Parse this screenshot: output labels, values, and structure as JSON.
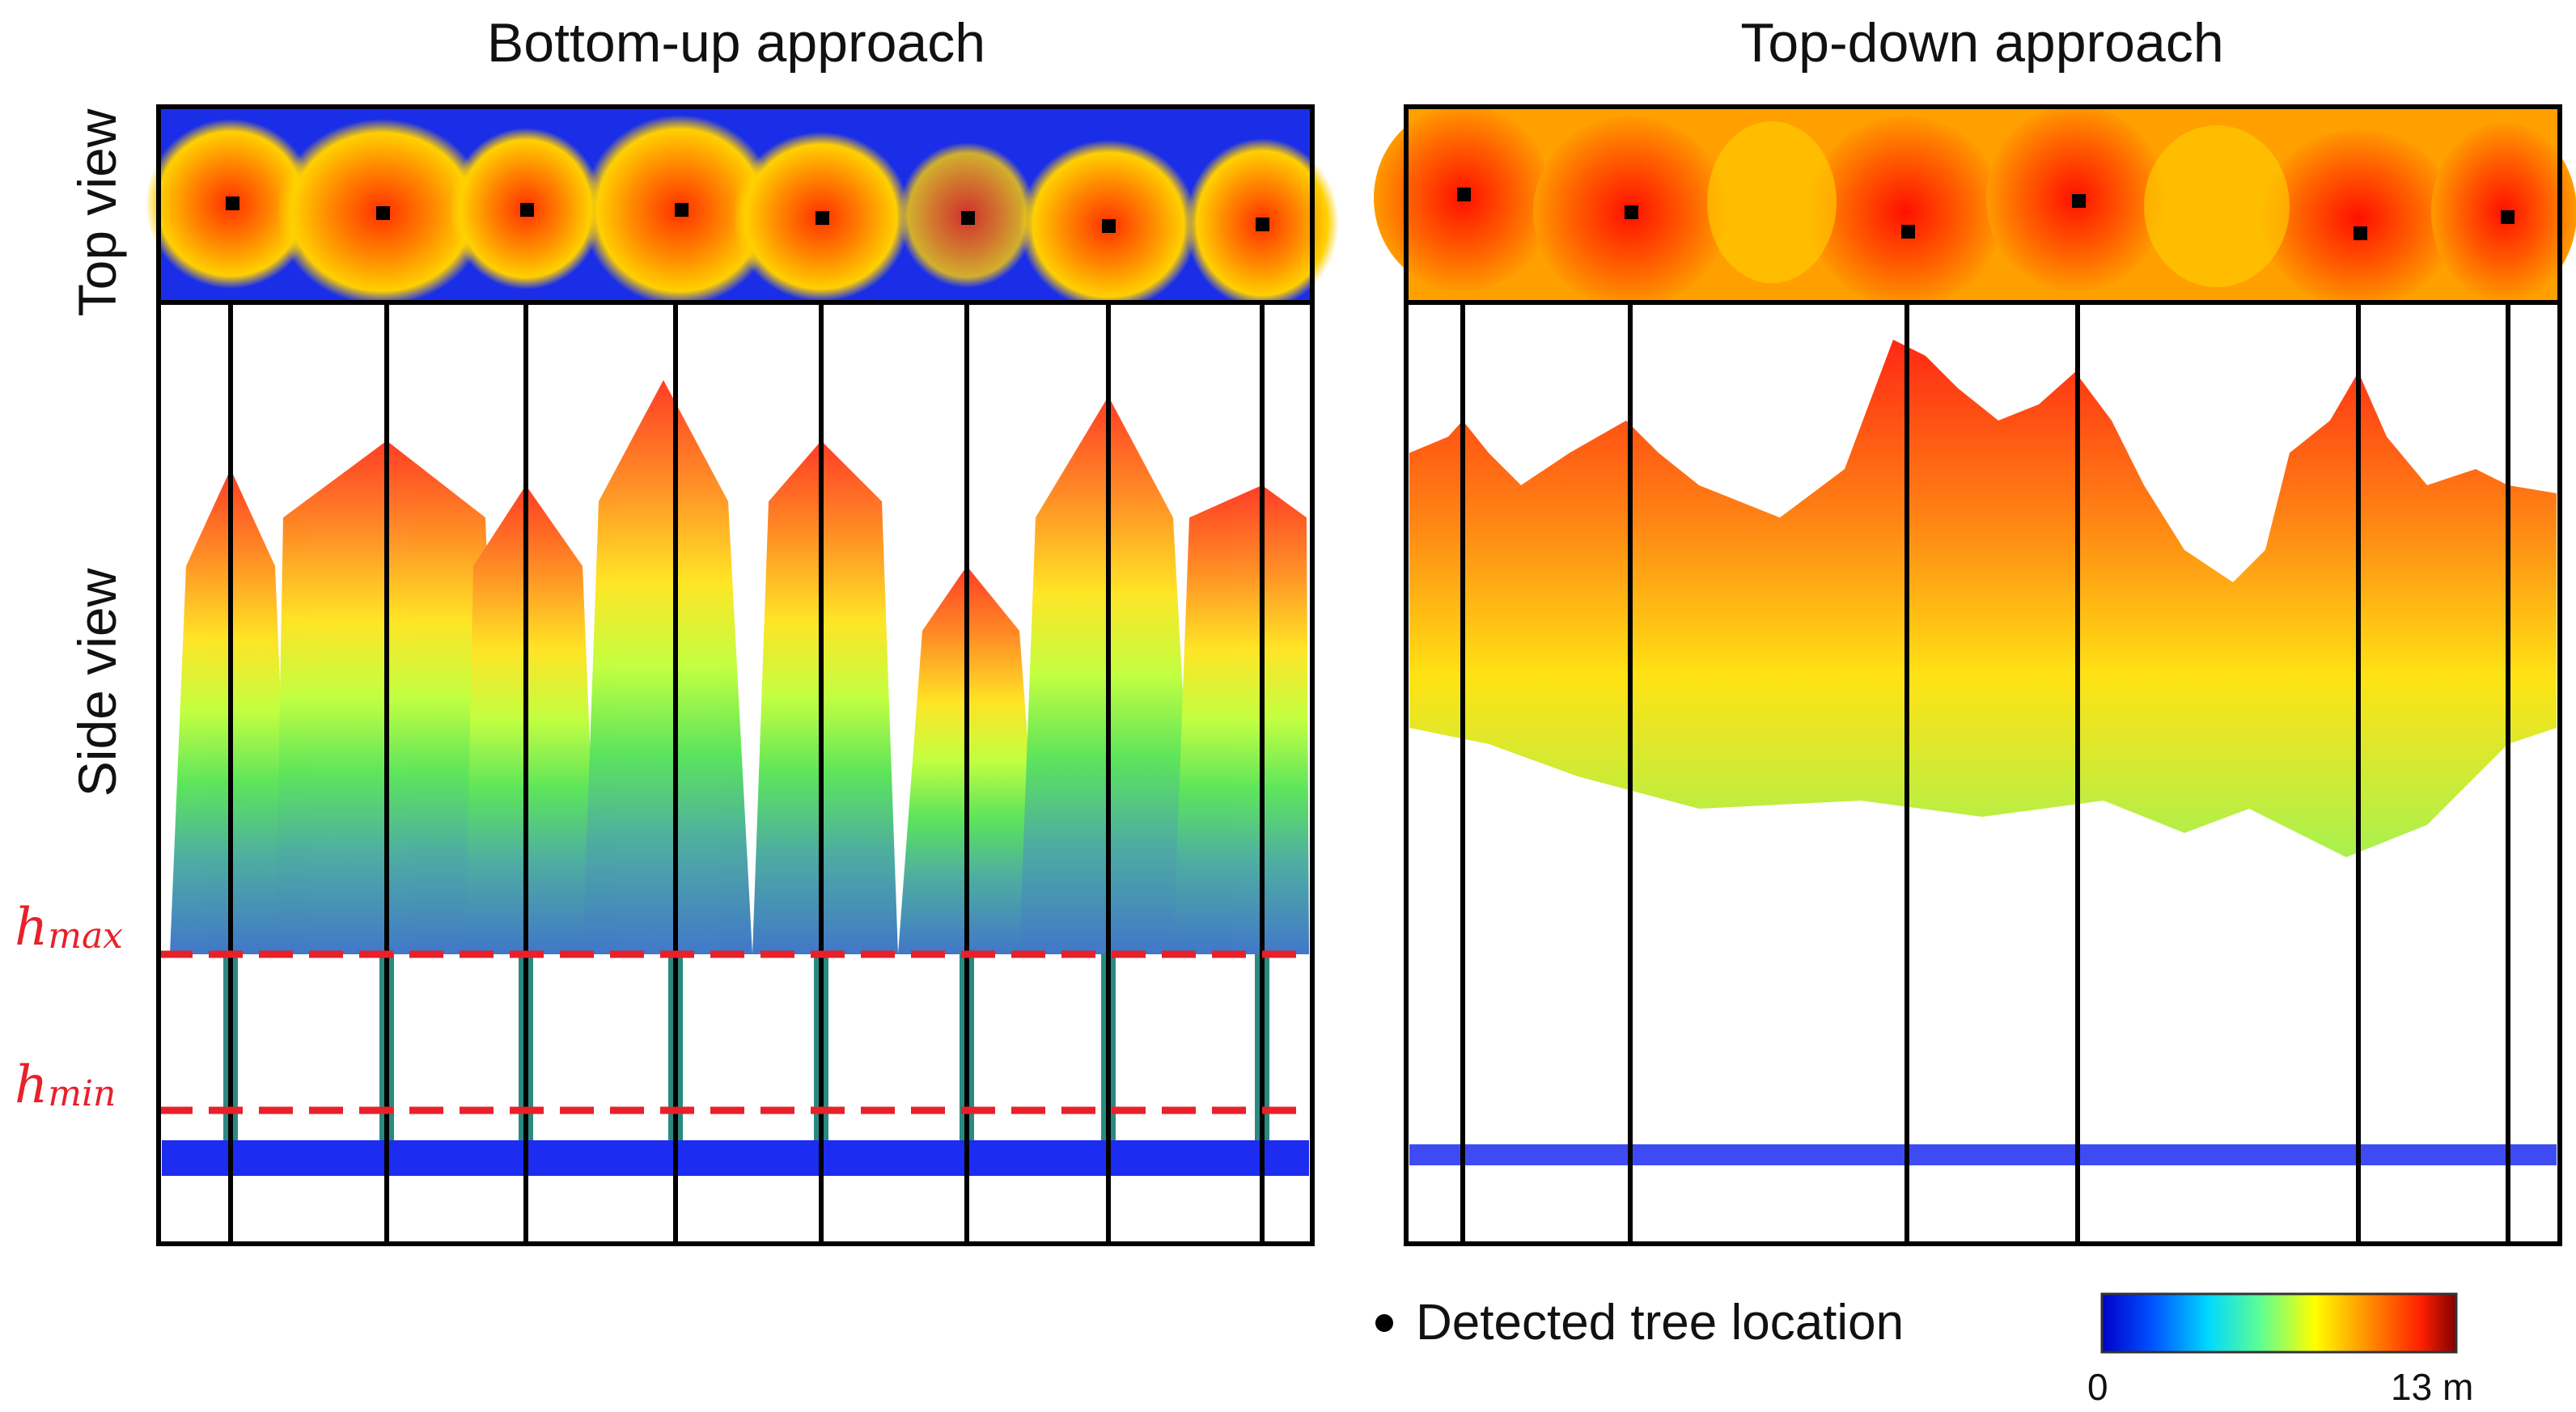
{
  "titles": {
    "left": "Bottom-up approach",
    "right": "Top-down approach"
  },
  "row_labels": {
    "top": "Top view",
    "side": "Side view"
  },
  "thresholds": {
    "hmax": "h",
    "hmax_sub": "max",
    "hmin": "h",
    "hmin_sub": "min"
  },
  "legend": {
    "marker_label": "Detected tree location"
  },
  "colorbar": {
    "min_label": "0",
    "max_label": "13 m",
    "min_value": 0,
    "max_value": 13,
    "unit": "m",
    "colors": [
      "#0000c8",
      "#0050ff",
      "#00d8ff",
      "#60ff90",
      "#ffff00",
      "#ff9000",
      "#ff2000",
      "#800000"
    ]
  },
  "colors": {
    "ground": "#1c2cf0",
    "threshold_line": "#e8202a",
    "top_view_bg_left": "#1a2ee8"
  }
}
